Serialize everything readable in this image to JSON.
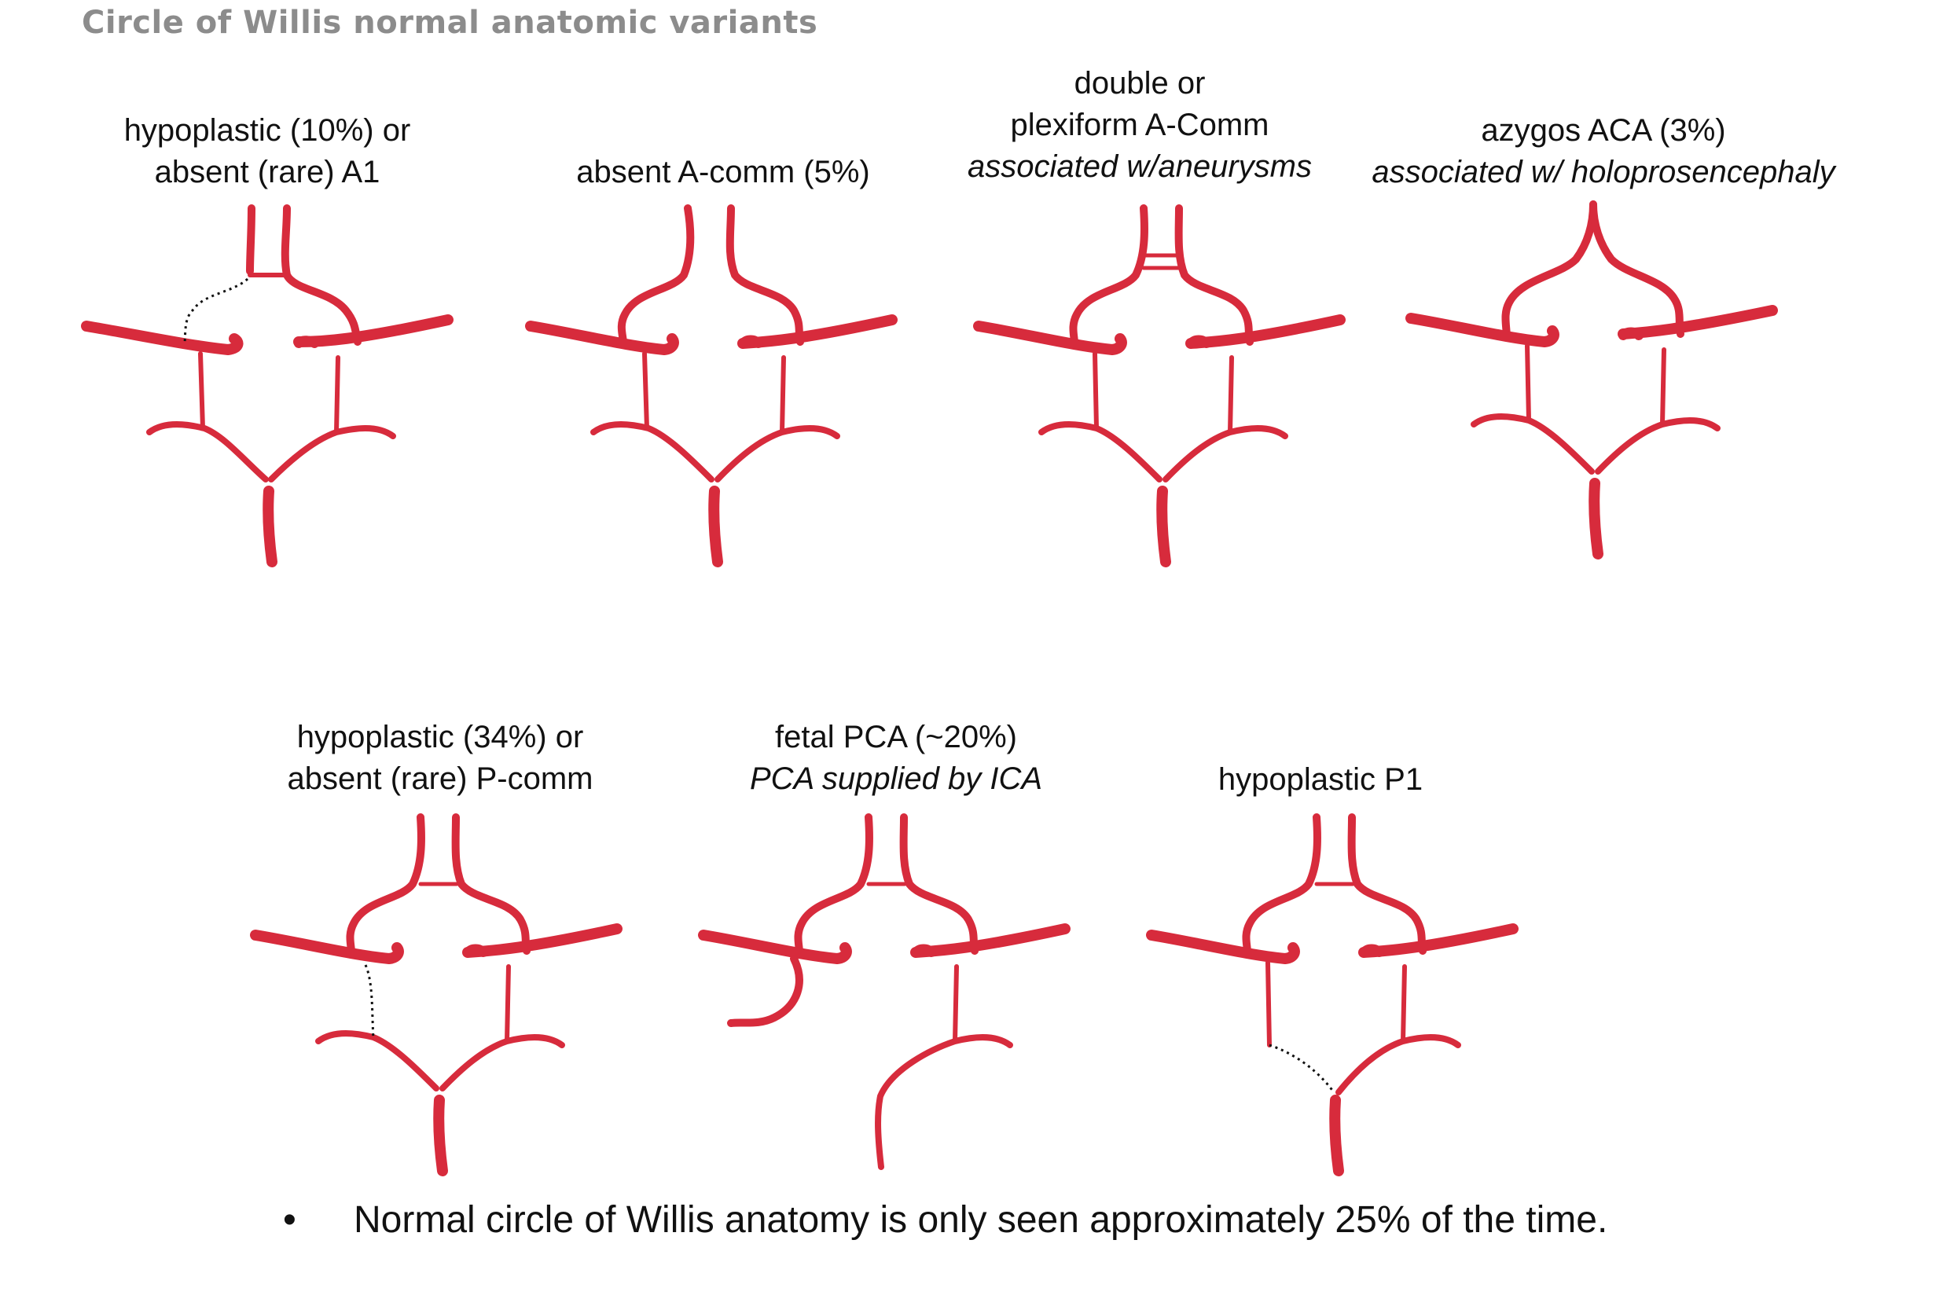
{
  "title": "Circle of Willis normal anatomic variants",
  "colors": {
    "vessel": "#d72b3c",
    "title": "#8c8c8c",
    "dotted": "#111111"
  },
  "variants": [
    {
      "lines": [
        "hypoplastic (10%) or",
        "absent (rare) A1"
      ],
      "italic": []
    },
    {
      "lines": [
        "absent A-comm (5%)"
      ],
      "italic": []
    },
    {
      "lines": [
        "double or",
        "plexiform A-Comm"
      ],
      "italic": [
        "associated w/aneurysms"
      ]
    },
    {
      "lines": [
        "azygos ACA (3%)"
      ],
      "italic": [
        "associated w/ holoprosencephaly"
      ]
    },
    {
      "lines": [
        "hypoplastic (34%) or",
        "absent (rare) P-comm"
      ],
      "italic": []
    },
    {
      "lines": [
        "fetal PCA (~20%)"
      ],
      "italic": [
        "PCA supplied by ICA"
      ]
    },
    {
      "lines": [
        "hypoplastic P1"
      ],
      "italic": []
    }
  ],
  "footnote": {
    "bullet": "•",
    "text": "Normal circle of Willis anatomy is only seen approximately 25% of the time."
  }
}
